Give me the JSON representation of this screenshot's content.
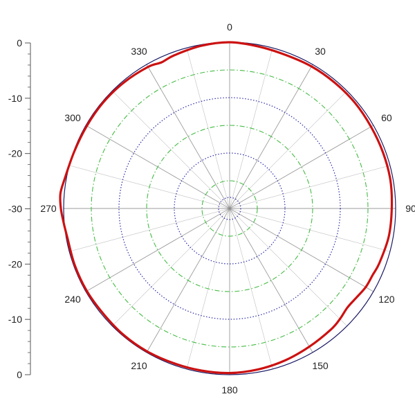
{
  "chart_data": {
    "type": "line",
    "subtype": "polar",
    "title": "",
    "angle_unit": "degrees",
    "angle_zero": "top",
    "angle_direction": "clockwise",
    "angle_ticks": [
      0,
      30,
      60,
      90,
      120,
      150,
      180,
      210,
      240,
      270,
      300,
      330
    ],
    "radial_axis": {
      "range": [
        -30,
        0
      ],
      "tick_labels": [
        "0",
        "-10",
        "-20",
        "-30",
        "-20",
        "-10",
        "0"
      ],
      "minor_ticks_per_major": 5
    },
    "grid": {
      "spokes_every_deg": 15,
      "circles_major": [
        -5,
        -15,
        -25
      ],
      "circles_minor": [
        -10,
        -20,
        -28
      ]
    },
    "series": [
      {
        "angles": [
          0,
          10,
          20,
          30,
          40,
          50,
          60,
          70,
          80,
          90,
          100,
          110,
          115,
          120,
          125,
          130,
          135,
          140,
          150,
          160,
          170,
          180,
          190,
          200,
          210,
          220,
          230,
          240,
          250,
          260,
          265,
          270,
          275,
          280,
          290,
          300,
          310,
          320,
          330,
          335,
          340,
          350,
          360
        ],
        "values": [
          0,
          -0.3,
          -0.5,
          -0.4,
          -0.4,
          -0.4,
          -0.5,
          -0.5,
          -0.5,
          -0.7,
          -0.8,
          -1.2,
          -1.5,
          -1.6,
          -2.0,
          -2.2,
          -1.8,
          -1.5,
          -1.2,
          -0.8,
          -0.5,
          -0.3,
          -0.3,
          -0.3,
          -0.2,
          -0.2,
          -0.3,
          -0.2,
          -0.2,
          -0.2,
          0.1,
          0.5,
          0.7,
          0.3,
          -0.1,
          -0.2,
          -0.2,
          -0.3,
          -0.5,
          -0.9,
          -0.6,
          -0.2,
          0
        ]
      }
    ]
  },
  "colors": {
    "series": "#cc1111",
    "outer_circle": "#1a1a66",
    "spokes": "#8a8a8a",
    "circle_green": "#44bb44",
    "circle_blue": "#2a2aa8",
    "axis": "#555555"
  }
}
